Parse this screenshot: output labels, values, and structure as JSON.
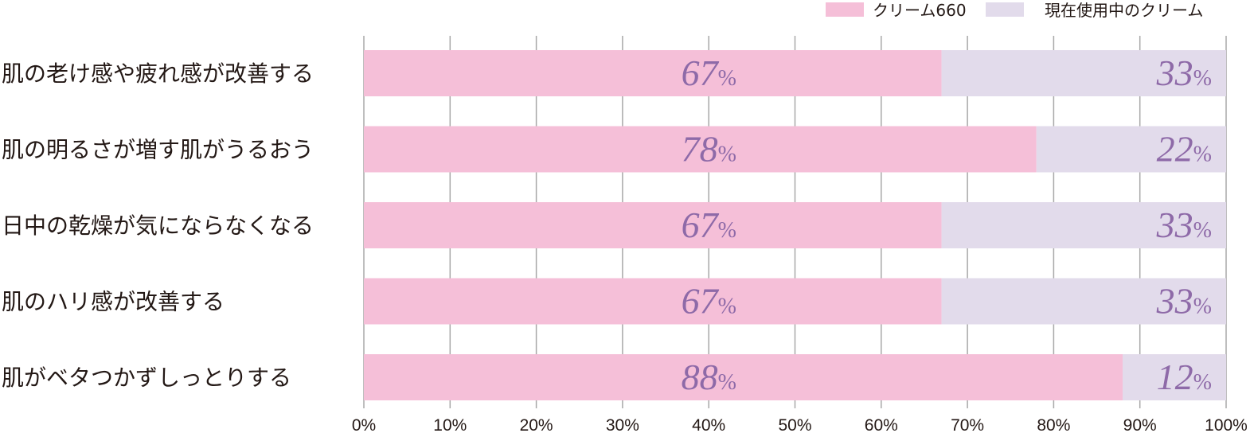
{
  "chart_data": {
    "type": "bar",
    "orientation": "horizontal",
    "stacked": true,
    "categories": [
      "肌の老け感や疲れ感が改善する",
      "肌の明るさが増す肌がうるおう",
      "日中の乾燥が気にならなくなる",
      "肌のハリ感が改善する",
      "肌がベタつかずしっとりする"
    ],
    "series": [
      {
        "name": "クリーム660",
        "values": [
          67,
          78,
          67,
          67,
          88
        ],
        "color": "#f5bfd8"
      },
      {
        "name": "現在使用中のクリーム",
        "values": [
          33,
          22,
          33,
          33,
          12
        ],
        "color": "#e2dbeb"
      }
    ],
    "data_labels": [
      [
        "67",
        "78",
        "67",
        "67",
        "88"
      ],
      [
        "33",
        "22",
        "33",
        "33",
        "12"
      ]
    ],
    "data_label_unit": "%",
    "xlim": [
      0,
      100
    ],
    "x_ticks": [
      "0%",
      "10%",
      "20%",
      "30%",
      "40%",
      "50%",
      "60%",
      "70%",
      "80%",
      "90%",
      "100%"
    ],
    "x_tick_values": [
      0,
      10,
      20,
      30,
      40,
      50,
      60,
      70,
      80,
      90,
      100
    ],
    "grid": true,
    "legend_position": "top-right",
    "label_color": "#8e6aa8",
    "grid_color": "#a8a8a8",
    "text_color": "#231815"
  }
}
